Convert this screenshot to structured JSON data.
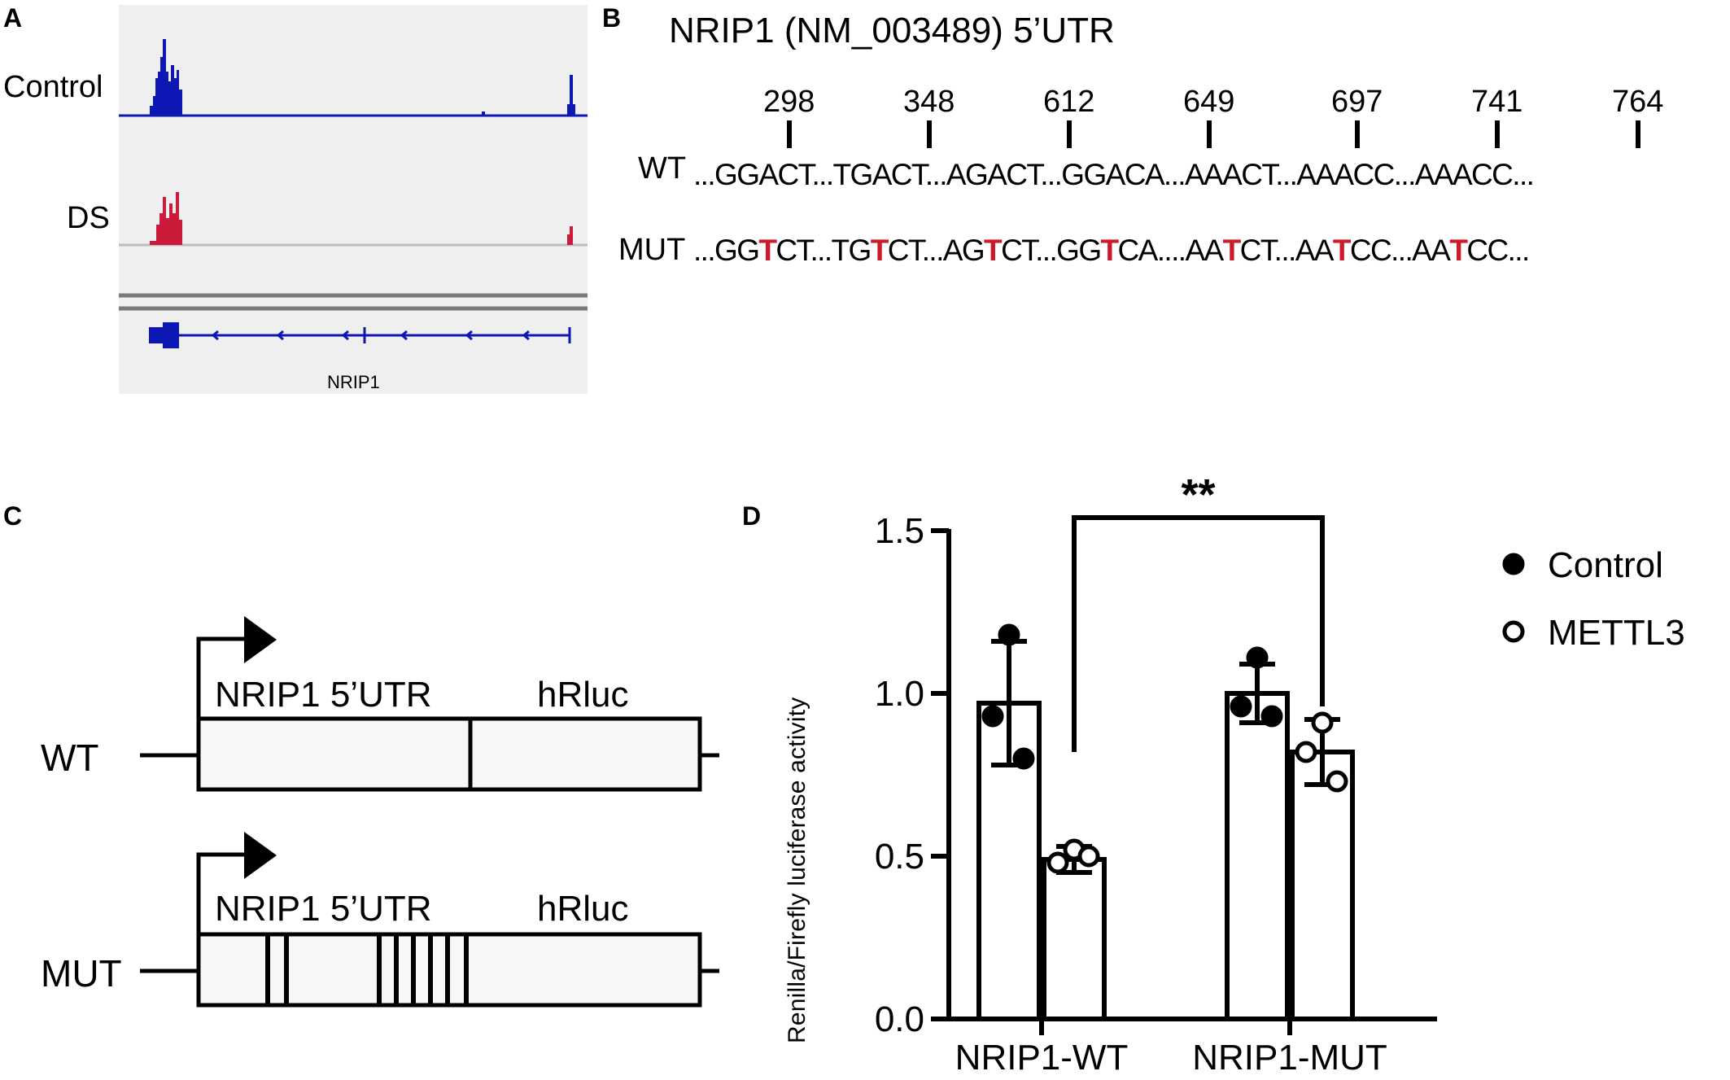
{
  "panels": {
    "A": {
      "label": "A",
      "tracks": [
        "Control",
        "DS"
      ],
      "gene": "NRIP1",
      "colors": {
        "control": "#0d18b4",
        "ds": "#cc1a3a",
        "bg": "#efefef"
      }
    },
    "B": {
      "label": "B",
      "title": "NRIP1 (NM_003489) 5’UTR",
      "positions": [
        "298",
        "348",
        "612",
        "649",
        "697",
        "741",
        "764"
      ],
      "wt_label": "WT",
      "mut_label": "MUT",
      "wt_segments": [
        "...GGACT",
        "...TGACT",
        "...AGACT",
        "...GGACA",
        "...AAACT",
        "...AAACC",
        "...AAACC..."
      ],
      "mut_segments": [
        [
          "...GG",
          "T",
          "CT"
        ],
        [
          "...TG",
          "T",
          "CT"
        ],
        [
          "...AG",
          "T",
          "CT"
        ],
        [
          "...GG",
          "T",
          "CA"
        ],
        [
          "....AA",
          "T",
          "CT"
        ],
        [
          "...AA",
          "T",
          "CC"
        ],
        [
          "...AA",
          "T",
          "CC..."
        ]
      ],
      "mut_color": "#cc1a2a"
    },
    "C": {
      "label": "C",
      "constructs": [
        {
          "name": "WT",
          "region1": "NRIP1 5’UTR",
          "region2": "hRluc"
        },
        {
          "name": "MUT",
          "region1": "NRIP1 5’UTR",
          "region2": "hRluc"
        }
      ]
    },
    "D": {
      "label": "D"
    }
  },
  "chart_data": {
    "type": "bar",
    "ylabel": "Renilla/Firefly luciferase activity",
    "ylim": [
      0,
      1.5
    ],
    "yticks": [
      "0.0",
      "0.5",
      "1.0",
      "1.5"
    ],
    "categories": [
      "NRIP1-WT",
      "NRIP1-MUT"
    ],
    "series": [
      {
        "name": "Control",
        "marker": "filled",
        "values": [
          0.97,
          1.0
        ],
        "errors": [
          0.19,
          0.09
        ],
        "points": [
          [
            1.18,
            0.93,
            0.8
          ],
          [
            1.11,
            0.96,
            0.93
          ]
        ]
      },
      {
        "name": "METTL3",
        "marker": "open",
        "values": [
          0.49,
          0.82
        ],
        "errors": [
          0.04,
          0.1
        ],
        "points": [
          [
            0.52,
            0.48,
            0.5
          ],
          [
            0.91,
            0.82,
            0.73
          ]
        ]
      }
    ],
    "significance": {
      "label": "**",
      "between": [
        "NRIP1-WT METTL3",
        "NRIP1-MUT METTL3"
      ]
    },
    "legend_position": "right"
  }
}
